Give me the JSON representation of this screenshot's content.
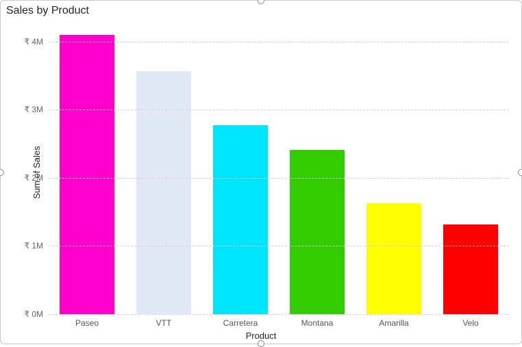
{
  "chart": {
    "type": "bar",
    "title": "Sales by Product",
    "title_fontsize": 16,
    "title_color": "#252423",
    "x_axis_label": "Product",
    "y_axis_label": "Sum of Sales",
    "axis_label_fontsize": 13,
    "tick_fontsize": 12,
    "tick_color": "#666666",
    "currency_prefix": "₹ ",
    "background_color": "#ffffff",
    "border_color": "#c8c8c8",
    "grid_color": "#d0d0d0",
    "grid_dash": true,
    "ylim": [
      0,
      4200000
    ],
    "y_ticks": [
      {
        "value": 0,
        "label": "₹ 0M"
      },
      {
        "value": 1000000,
        "label": "₹ 1M"
      },
      {
        "value": 2000000,
        "label": "₹ 2M"
      },
      {
        "value": 3000000,
        "label": "₹ 3M"
      },
      {
        "value": 4000000,
        "label": "₹ 4M"
      }
    ],
    "bar_width_ratio": 0.72,
    "categories": [
      "Paseo",
      "VTT",
      "Carretera",
      "Montana",
      "Amarilla",
      "Velo"
    ],
    "values": [
      4100000,
      3570000,
      2770000,
      2410000,
      1630000,
      1320000
    ],
    "bar_colors": [
      "#ff00cc",
      "#e2e9f6",
      "#00e5ff",
      "#33cc00",
      "#ffff00",
      "#ff0000"
    ]
  }
}
